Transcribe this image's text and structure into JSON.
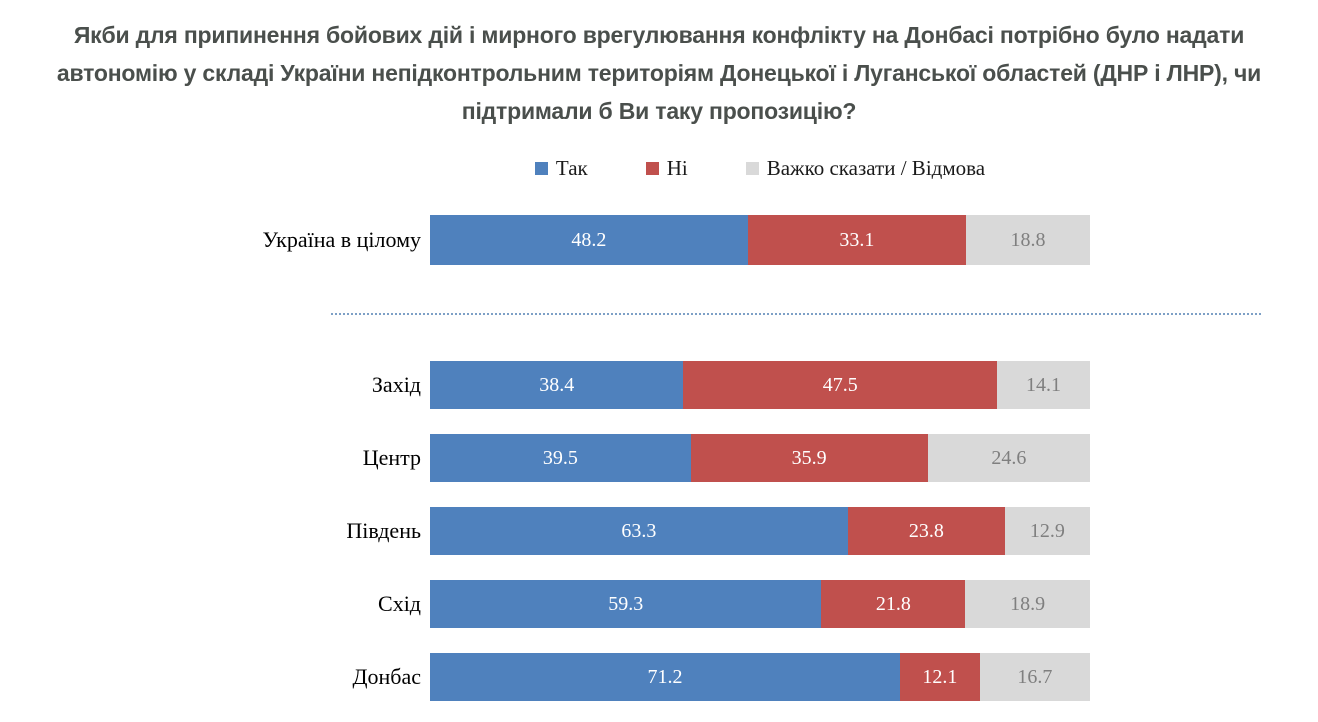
{
  "title": "Якби для припинення бойових дій і мирного врегулювання конфлікту на Донбасі потрібно було надати автономію у складі України непідконтрольним територіям Донецької і Луганської областей (ДНР і ЛНР), чи підтримали б Ви таку пропозицію?",
  "legend": [
    {
      "label": "Так",
      "color": "#4f81bd"
    },
    {
      "label": "Ні",
      "color": "#c0504d"
    },
    {
      "label": "Важко сказати / Відмова",
      "color": "#d9d9d9"
    }
  ],
  "chart_data": {
    "type": "bar",
    "orientation": "horizontal",
    "stacked": true,
    "unit": "percent",
    "xlim": [
      0,
      100
    ],
    "grid": false,
    "legend_position": "top",
    "series": [
      "Так",
      "Ні",
      "Важко сказати / Відмова"
    ],
    "series_keys": [
      "yes",
      "no",
      "hard-to-say"
    ],
    "colors": [
      "#4f81bd",
      "#c0504d",
      "#d9d9d9"
    ],
    "value_label_colors": [
      "#ffffff",
      "#ffffff",
      "#7f7f7f"
    ],
    "divider_color": "#7da0c6",
    "groups": [
      {
        "name": "national",
        "rows": [
          {
            "label": "Україна в цілому",
            "values": [
              48.2,
              33.1,
              18.8
            ]
          }
        ]
      },
      {
        "name": "regional",
        "rows": [
          {
            "label": "Захід",
            "values": [
              38.4,
              47.5,
              14.1
            ]
          },
          {
            "label": "Центр",
            "values": [
              39.5,
              35.9,
              24.6
            ]
          },
          {
            "label": "Південь",
            "values": [
              63.3,
              23.8,
              12.9
            ]
          },
          {
            "label": "Схід",
            "values": [
              59.3,
              21.8,
              18.9
            ]
          },
          {
            "label": "Донбас",
            "values": [
              71.2,
              12.1,
              16.7
            ]
          }
        ]
      }
    ]
  }
}
